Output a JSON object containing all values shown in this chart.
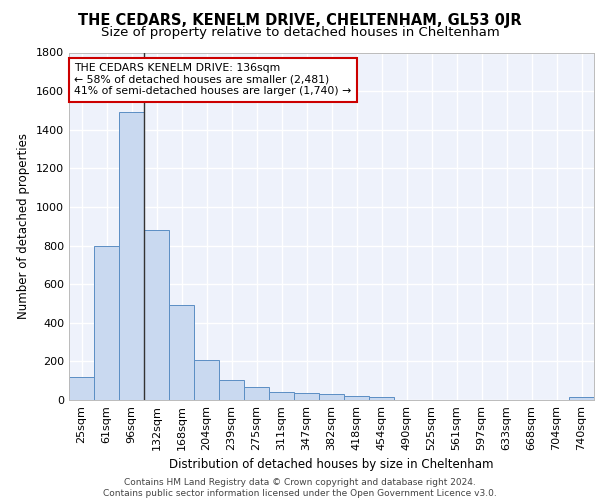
{
  "title": "THE CEDARS, KENELM DRIVE, CHELTENHAM, GL53 0JR",
  "subtitle": "Size of property relative to detached houses in Cheltenham",
  "xlabel": "Distribution of detached houses by size in Cheltenham",
  "ylabel": "Number of detached properties",
  "categories": [
    "25sqm",
    "61sqm",
    "96sqm",
    "132sqm",
    "168sqm",
    "204sqm",
    "239sqm",
    "275sqm",
    "311sqm",
    "347sqm",
    "382sqm",
    "418sqm",
    "454sqm",
    "490sqm",
    "525sqm",
    "561sqm",
    "597sqm",
    "633sqm",
    "668sqm",
    "704sqm",
    "740sqm"
  ],
  "values": [
    120,
    800,
    1490,
    880,
    490,
    205,
    105,
    65,
    40,
    35,
    30,
    22,
    15,
    0,
    0,
    0,
    0,
    0,
    0,
    0,
    15
  ],
  "bar_color": "#c9d9f0",
  "bar_edge_color": "#5b8ec4",
  "background_color": "#eef2fb",
  "grid_color": "#ffffff",
  "annotation_text": "THE CEDARS KENELM DRIVE: 136sqm\n← 58% of detached houses are smaller (2,481)\n41% of semi-detached houses are larger (1,740) →",
  "vline_bar_index": 3,
  "ylim": [
    0,
    1800
  ],
  "yticks": [
    0,
    200,
    400,
    600,
    800,
    1000,
    1200,
    1400,
    1600,
    1800
  ],
  "footer_text": "Contains HM Land Registry data © Crown copyright and database right 2024.\nContains public sector information licensed under the Open Government Licence v3.0.",
  "annotation_box_facecolor": "#ffffff",
  "annotation_box_edgecolor": "#cc0000",
  "title_fontsize": 10.5,
  "subtitle_fontsize": 9.5,
  "axis_label_fontsize": 8.5,
  "tick_fontsize": 8,
  "annotation_fontsize": 7.8,
  "footer_fontsize": 6.5
}
